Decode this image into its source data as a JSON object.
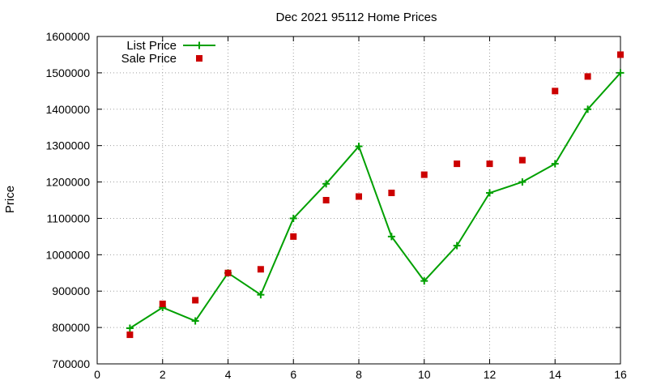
{
  "chart_data": {
    "type": "line",
    "title": "Dec 2021 95112 Home Prices",
    "xlabel": "",
    "ylabel": "Price",
    "xlim": [
      0,
      16
    ],
    "ylim": [
      700000,
      1600000
    ],
    "xticks": [
      "0",
      "2",
      "4",
      "6",
      "8",
      "10",
      "12",
      "14",
      "16"
    ],
    "yticks": [
      "700000",
      "800000",
      "900000",
      "1000000",
      "1100000",
      "1200000",
      "1300000",
      "1400000",
      "1500000",
      "1600000"
    ],
    "grid": true,
    "legend_position": "top-left",
    "series": [
      {
        "name": "List Price",
        "style": "lines+points",
        "marker": "plus",
        "color": "#00a000",
        "x": [
          1,
          2,
          3,
          4,
          5,
          6,
          7,
          8,
          9,
          10,
          11,
          12,
          13,
          14,
          15,
          16
        ],
        "y": [
          798000,
          855000,
          818000,
          950000,
          890000,
          1100000,
          1195000,
          1298000,
          1050000,
          928000,
          1025000,
          1170000,
          1200000,
          1250000,
          1400000,
          1500000
        ]
      },
      {
        "name": "Sale Price",
        "style": "points",
        "marker": "square",
        "color": "#cc0000",
        "x": [
          1,
          2,
          3,
          4,
          5,
          6,
          7,
          8,
          9,
          10,
          11,
          12,
          13,
          14,
          15,
          16
        ],
        "y": [
          780000,
          865000,
          875000,
          950000,
          960000,
          1050000,
          1150000,
          1160000,
          1170000,
          1220000,
          1250000,
          1250000,
          1260000,
          1450000,
          1490000,
          1550000
        ]
      }
    ]
  }
}
